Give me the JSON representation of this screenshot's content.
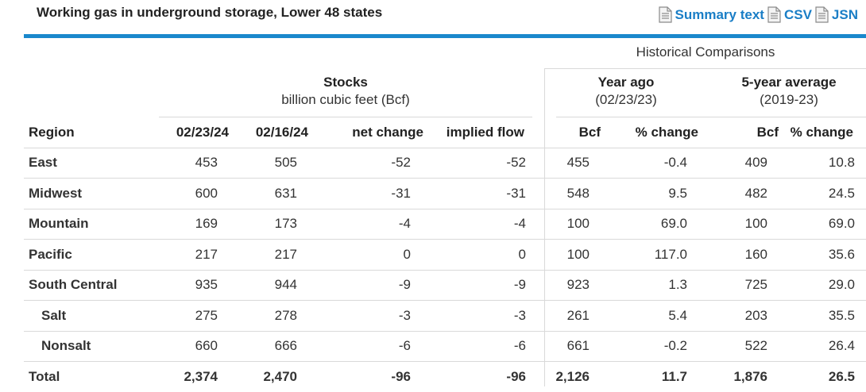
{
  "title": "Working gas in underground storage, Lower 48 states",
  "links": {
    "summary": "Summary text",
    "csv": "CSV",
    "json": "JSN"
  },
  "historical_title": "Historical Comparisons",
  "stocks": {
    "title": "Stocks",
    "unit": "billion cubic feet (Bcf)"
  },
  "year_ago": {
    "title": "Year ago",
    "date": "(02/23/23)"
  },
  "five_year": {
    "title": "5-year average",
    "range": "(2019-23)"
  },
  "columns": [
    "Region",
    "02/23/24",
    "02/16/24",
    "net change",
    "implied flow",
    "Bcf",
    "% change",
    "Bcf",
    "% change"
  ],
  "rows": [
    {
      "region": "East",
      "sub": false,
      "v": [
        "453",
        "505",
        "-52",
        "-52",
        "455",
        "-0.4",
        "409",
        "10.8"
      ]
    },
    {
      "region": "Midwest",
      "sub": false,
      "v": [
        "600",
        "631",
        "-31",
        "-31",
        "548",
        "9.5",
        "482",
        "24.5"
      ]
    },
    {
      "region": "Mountain",
      "sub": false,
      "v": [
        "169",
        "173",
        "-4",
        "-4",
        "100",
        "69.0",
        "100",
        "69.0"
      ]
    },
    {
      "region": "Pacific",
      "sub": false,
      "v": [
        "217",
        "217",
        "0",
        "0",
        "100",
        "117.0",
        "160",
        "35.6"
      ]
    },
    {
      "region": "South Central",
      "sub": false,
      "v": [
        "935",
        "944",
        "-9",
        "-9",
        "923",
        "1.3",
        "725",
        "29.0"
      ]
    },
    {
      "region": "Salt",
      "sub": true,
      "v": [
        "275",
        "278",
        "-3",
        "-3",
        "261",
        "5.4",
        "203",
        "35.5"
      ]
    },
    {
      "region": "Nonsalt",
      "sub": true,
      "v": [
        "660",
        "666",
        "-6",
        "-6",
        "661",
        "-0.2",
        "522",
        "26.4"
      ]
    },
    {
      "region": "Total",
      "sub": false,
      "total": true,
      "v": [
        "2,374",
        "2,470",
        "-96",
        "-96",
        "2,126",
        "11.7",
        "1,876",
        "26.5"
      ]
    }
  ]
}
